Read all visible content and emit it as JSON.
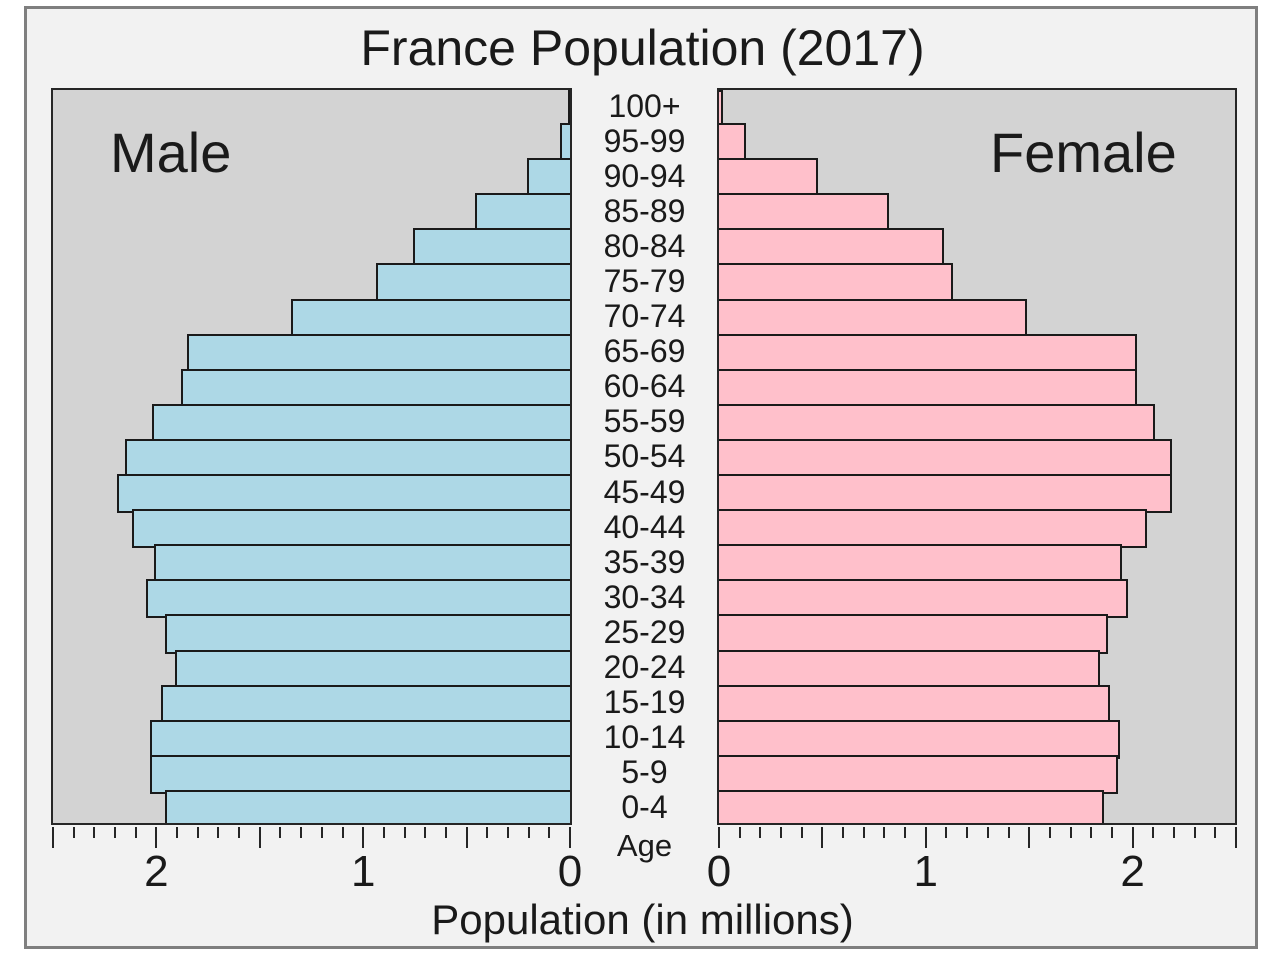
{
  "title": "France Population (2017)",
  "left_panel_label": "Male",
  "right_panel_label": "Female",
  "age_axis_label": "Age",
  "x_axis_label": "Population (in millions)",
  "colors": {
    "male_bar": "#add8e6",
    "female_bar": "#ffc0cb",
    "bar_edge": "#1a1a1a",
    "plot_background": "#d3d3d3",
    "figure_background": "#f2f2f2",
    "figure_border": "#7f7f7f",
    "axis_spine": "#262626",
    "text": "#1a1a1a"
  },
  "chart_data": {
    "type": "bar",
    "subtype": "population-pyramid",
    "title": "France Population (2017)",
    "xlabel": "Population (in millions)",
    "age_axis_label": "Age",
    "categories_top_to_bottom": [
      "100+",
      "95-99",
      "90-94",
      "85-89",
      "80-84",
      "75-79",
      "70-74",
      "65-69",
      "60-64",
      "55-59",
      "50-54",
      "45-49",
      "40-44",
      "35-39",
      "30-34",
      "25-29",
      "20-24",
      "15-19",
      "10-14",
      "5-9",
      "0-4"
    ],
    "series": [
      {
        "name": "Male",
        "side": "left",
        "values_millions": [
          0.005,
          0.05,
          0.21,
          0.46,
          0.76,
          0.94,
          1.35,
          1.85,
          1.88,
          2.02,
          2.15,
          2.19,
          2.12,
          2.01,
          2.05,
          1.96,
          1.91,
          1.98,
          2.03,
          2.03,
          1.96
        ]
      },
      {
        "name": "Female",
        "side": "right",
        "values_millions": [
          0.02,
          0.13,
          0.48,
          0.82,
          1.09,
          1.13,
          1.49,
          2.02,
          2.02,
          2.11,
          2.19,
          2.19,
          2.07,
          1.95,
          1.98,
          1.88,
          1.84,
          1.89,
          1.94,
          1.93,
          1.86
        ]
      }
    ],
    "x_max": 2.5,
    "x_minor_tick_step": 0.1,
    "x_major_tick_step": 0.5,
    "x_labeled_ticks": [
      0,
      1,
      2
    ],
    "grid": false,
    "legend": "none"
  }
}
